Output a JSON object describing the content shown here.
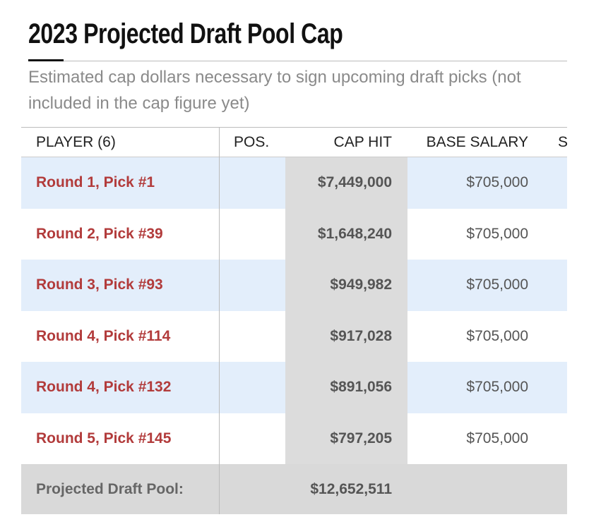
{
  "header": {
    "title": "2023 Projected Draft Pool Cap",
    "subtitle": "Estimated cap dollars necessary to sign upcoming draft picks (not included in the cap figure yet)"
  },
  "table": {
    "columns": [
      "PLAYER (6)",
      "POS.",
      "CAP HIT",
      "BASE SALARY",
      "S"
    ],
    "rows": [
      {
        "player": "Round 1, Pick #1",
        "cap_hit": "$7,449,000",
        "base_salary": "$705,000"
      },
      {
        "player": "Round 2, Pick #39",
        "cap_hit": "$1,648,240",
        "base_salary": "$705,000"
      },
      {
        "player": "Round 3, Pick #93",
        "cap_hit": "$949,982",
        "base_salary": "$705,000"
      },
      {
        "player": "Round 4, Pick #114",
        "cap_hit": "$917,028",
        "base_salary": "$705,000"
      },
      {
        "player": "Round 4, Pick #132",
        "cap_hit": "$891,056",
        "base_salary": "$705,000"
      },
      {
        "player": "Round 5, Pick #145",
        "cap_hit": "$797,205",
        "base_salary": "$705,000"
      }
    ],
    "footer": {
      "label": "Projected Draft Pool:",
      "cap_hit": "$12,652,511"
    }
  }
}
